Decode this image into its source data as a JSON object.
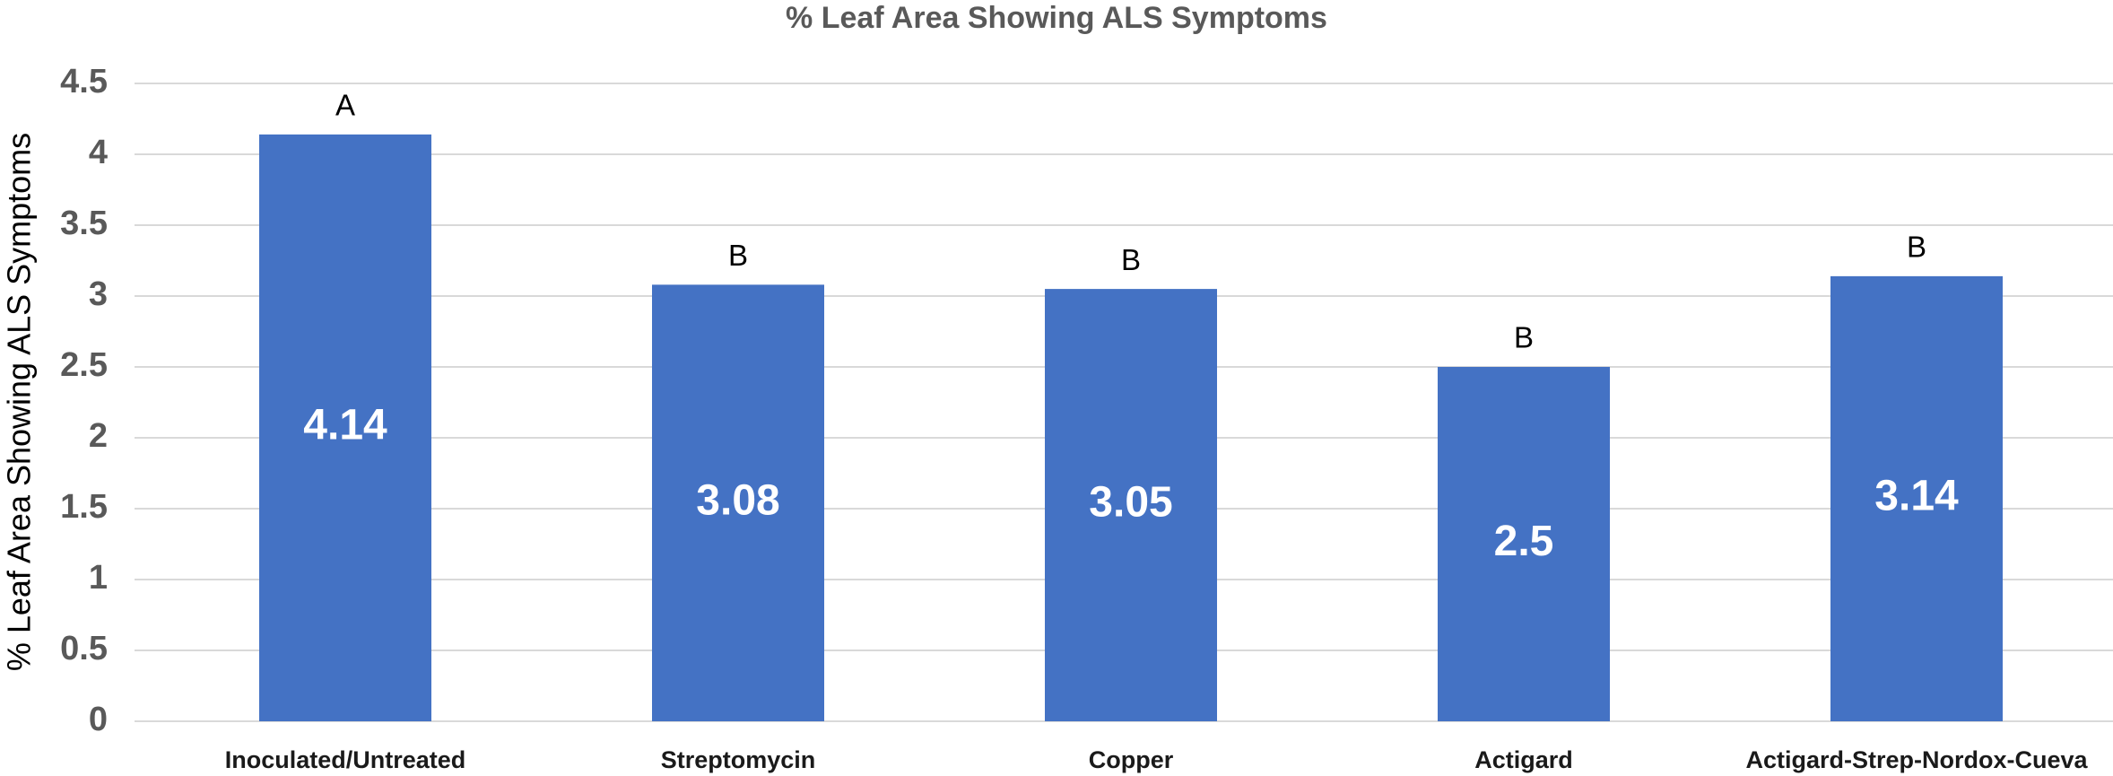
{
  "chart_data": {
    "type": "bar",
    "title": "% Leaf Area Showing ALS Symptoms",
    "y_label": "% Leaf Area Showing ALS Symptoms",
    "categories": [
      "Inoculated/Untreated",
      "Streptomycin",
      "Copper",
      "Actigard",
      "Actigard-Strep-Nordox-Cueva"
    ],
    "values": [
      4.14,
      3.08,
      3.05,
      2.5,
      3.14
    ],
    "annotations": [
      "A",
      "B",
      "B",
      "B",
      "B"
    ],
    "color": "#4472c4",
    "ylim": [
      0,
      4.5
    ],
    "yticks": [
      0,
      0.5,
      1,
      1.5,
      2,
      2.5,
      3,
      3.5,
      4,
      4.5
    ],
    "grid": true
  }
}
